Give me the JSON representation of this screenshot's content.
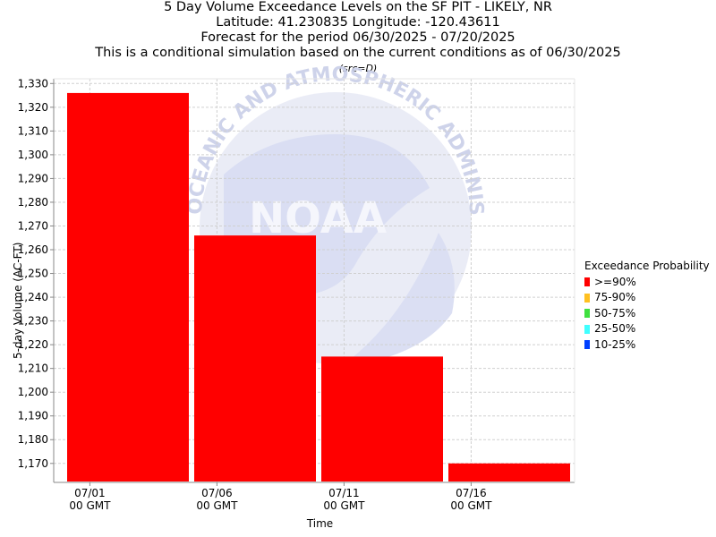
{
  "titles": {
    "line1": "5 Day Volume Exceedance Levels on the SF PIT - LIKELY, NR",
    "line2": "Latitude: 41.230835 Longitude: -120.43611",
    "line3": "Forecast for the period 06/30/2025 - 07/20/2025",
    "line4": "This is a conditional simulation based on the current conditions as of 06/30/2025",
    "source": "(src=D)"
  },
  "watermark": {
    "icon": "noaa-logo-icon",
    "text": "NOAA",
    "arc_text": "OCEANIC AND ATMOSPHERIC ADMINISTRATION"
  },
  "chart_data": {
    "type": "bar",
    "xlabel": "Time",
    "ylabel": "5-day Volume (AC-FT)",
    "ylim": [
      1162,
      1332
    ],
    "y_ticks": [
      1170,
      1180,
      1190,
      1200,
      1210,
      1220,
      1230,
      1240,
      1250,
      1260,
      1270,
      1280,
      1290,
      1300,
      1310,
      1320,
      1330
    ],
    "y_tick_labels": [
      "1,170",
      "1,180",
      "1,190",
      "1,200",
      "1,210",
      "1,220",
      "1,230",
      "1,240",
      "1,250",
      "1,260",
      "1,270",
      "1,280",
      "1,290",
      "1,300",
      "1,310",
      "1,320",
      "1,330"
    ],
    "x_ticks": [
      {
        "date": "2025-07-01",
        "label": "07/01",
        "sublabel": "00 GMT"
      },
      {
        "date": "2025-07-06",
        "label": "07/06",
        "sublabel": "00 GMT"
      },
      {
        "date": "2025-07-11",
        "label": "07/11",
        "sublabel": "00 GMT"
      },
      {
        "date": "2025-07-16",
        "label": "07/16",
        "sublabel": "00 GMT"
      }
    ],
    "x_range": [
      "2025-06-30",
      "2025-07-20"
    ],
    "grid": true,
    "legend_position": "right",
    "legend_title": "Exceedance Probability",
    "legend": [
      {
        "label": ">=90%",
        "color": "#ff0000"
      },
      {
        "label": "75-90%",
        "color": "#ffc020"
      },
      {
        "label": "50-75%",
        "color": "#40e040"
      },
      {
        "label": "25-50%",
        "color": "#40ffff"
      },
      {
        "label": "10-25%",
        "color": "#0040ff"
      }
    ],
    "series": [
      {
        "name": ">=90%",
        "color": "#ff0000",
        "bars": [
          {
            "start": "2025-06-30",
            "end": "2025-07-05",
            "value": 1326
          },
          {
            "start": "2025-07-05",
            "end": "2025-07-10",
            "value": 1266
          },
          {
            "start": "2025-07-10",
            "end": "2025-07-15",
            "value": 1215
          },
          {
            "start": "2025-07-15",
            "end": "2025-07-20",
            "value": 1170
          }
        ]
      }
    ]
  }
}
